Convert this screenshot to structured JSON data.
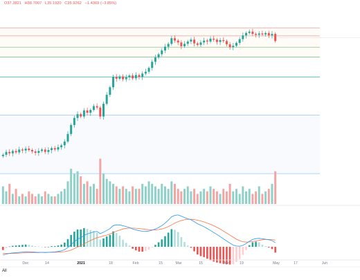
{
  "header": {
    "open": "O37.3821",
    "high": "H38.7007",
    "low": "L35.1920",
    "close": "C35.9262",
    "change": "−1.4369 (−3.85%)"
  },
  "range_buttons": {
    "all": "All"
  },
  "colors": {
    "up": "#26a69a",
    "down": "#ef5350",
    "up_volume": "#8fd1c9",
    "down_volume": "#f3a5a3",
    "macd_line": "#2196f3",
    "signal_line": "#ff7043",
    "hist_up_strong": "#26a69a",
    "hist_up_weak": "#b2dfdb",
    "hist_down_strong": "#ef5350",
    "hist_down_weak": "#ffcdd2",
    "level_red": "#ef9a9a",
    "level_green": "#81c784",
    "level_teal": "#26a69a",
    "level_blue": "#90caf9",
    "level_gray": "#bdbdbd"
  },
  "chart_data": {
    "type": "candlestick",
    "x_axis_labels": [
      "Dec",
      "14",
      "2021",
      "18",
      "Feb",
      "15",
      "Mar",
      "15",
      "Apr",
      "19",
      "May",
      "17",
      "Jun"
    ],
    "series": [
      {
        "name": "price",
        "close": [
          11.8,
          12.4,
          12.1,
          12.6,
          12.3,
          12.9,
          12.7,
          13.1,
          12.8,
          12.5,
          12.2,
          12.6,
          12.9,
          12.4,
          12.8,
          13.2,
          12.9,
          13.4,
          13.8,
          14.6,
          16.2,
          18.1,
          19.6,
          20.4,
          19.9,
          21.2,
          20.7,
          21.3,
          22.1,
          21.8,
          19.9,
          22.6,
          24.5,
          26.1,
          28.3,
          27.9,
          28.4,
          27.8,
          28.2,
          28.6,
          28.0,
          28.7,
          28.3,
          29.0,
          29.4,
          30.2,
          31.5,
          32.4,
          33.1,
          33.9,
          34.7,
          35.3,
          36.5,
          36.0,
          35.6,
          34.8,
          35.3,
          35.8,
          36.2,
          35.4,
          35.1,
          35.6,
          36.0,
          35.8,
          36.4,
          36.2,
          35.7,
          36.1,
          35.9,
          35.2,
          34.6,
          34.9,
          35.5,
          36.3,
          37.1,
          37.6,
          37.9,
          37.4,
          37.2,
          37.5,
          37.3,
          37.6,
          37.1,
          37.4,
          35.9
        ]
      },
      {
        "name": "volume",
        "values": [
          7,
          5,
          8,
          4,
          6,
          3,
          4,
          3,
          5,
          4,
          3,
          4,
          3,
          5,
          4,
          3,
          3,
          4,
          5,
          6,
          9,
          14,
          12,
          13,
          11,
          8,
          9,
          7,
          8,
          6,
          18,
          12,
          10,
          9,
          8,
          7,
          6,
          7,
          6,
          5,
          7,
          6,
          6,
          8,
          7,
          9,
          8,
          7,
          6,
          8,
          7,
          6,
          9,
          8,
          6,
          5,
          6,
          7,
          5,
          6,
          4,
          5,
          6,
          5,
          7,
          6,
          5,
          4,
          6,
          5,
          8,
          5,
          6,
          4,
          7,
          5,
          6,
          4,
          5,
          7,
          4,
          5,
          6,
          8,
          13
        ]
      },
      {
        "name": "macd",
        "values": [
          -0.55,
          -0.5,
          -0.45,
          -0.42,
          -0.4,
          -0.38,
          -0.36,
          -0.34,
          -0.34,
          -0.35,
          -0.37,
          -0.38,
          -0.38,
          -0.39,
          -0.38,
          -0.36,
          -0.35,
          -0.32,
          -0.28,
          -0.2,
          -0.05,
          0.15,
          0.35,
          0.52,
          0.62,
          0.78,
          0.88,
          0.95,
          1.02,
          1.05,
          0.9,
          1.0,
          1.12,
          1.25,
          1.45,
          1.5,
          1.5,
          1.44,
          1.38,
          1.32,
          1.22,
          1.16,
          1.1,
          1.07,
          1.06,
          1.08,
          1.14,
          1.22,
          1.32,
          1.45,
          1.62,
          1.82,
          2.05,
          2.15,
          2.18,
          2.1,
          2.0,
          1.92,
          1.85,
          1.72,
          1.58,
          1.48,
          1.38,
          1.25,
          1.12,
          0.98,
          0.84,
          0.7,
          0.55,
          0.4,
          0.25,
          0.12,
          0.05,
          0.04,
          0.1,
          0.22,
          0.38,
          0.5,
          0.56,
          0.58,
          0.55,
          0.52,
          0.48,
          0.42,
          0.28
        ]
      },
      {
        "name": "signal",
        "values": [
          -0.45,
          -0.46,
          -0.46,
          -0.45,
          -0.44,
          -0.43,
          -0.42,
          -0.41,
          -0.4,
          -0.39,
          -0.39,
          -0.39,
          -0.38,
          -0.38,
          -0.38,
          -0.38,
          -0.37,
          -0.36,
          -0.35,
          -0.33,
          -0.29,
          -0.22,
          -0.12,
          -0.02,
          0.08,
          0.2,
          0.32,
          0.43,
          0.53,
          0.62,
          0.68,
          0.74,
          0.8,
          0.88,
          0.97,
          1.07,
          1.15,
          1.22,
          1.26,
          1.28,
          1.28,
          1.27,
          1.25,
          1.22,
          1.19,
          1.17,
          1.16,
          1.16,
          1.18,
          1.22,
          1.29,
          1.38,
          1.5,
          1.62,
          1.72,
          1.8,
          1.85,
          1.88,
          1.88,
          1.86,
          1.82,
          1.77,
          1.7,
          1.62,
          1.54,
          1.44,
          1.33,
          1.21,
          1.08,
          0.94,
          0.8,
          0.66,
          0.52,
          0.42,
          0.35,
          0.32,
          0.33,
          0.36,
          0.4,
          0.44,
          0.48,
          0.5,
          0.5,
          0.49,
          0.46
        ]
      }
    ],
    "price_levels": [
      38.7,
      37.0,
      34.6,
      32.5,
      28.3,
      20.2,
      7.8
    ],
    "ylim_price": [
      6.5,
      40.2
    ],
    "ylim_volume": [
      0,
      22
    ],
    "ylim_macd": [
      -1.3,
      2.6
    ],
    "grid": false,
    "legend": "none"
  }
}
